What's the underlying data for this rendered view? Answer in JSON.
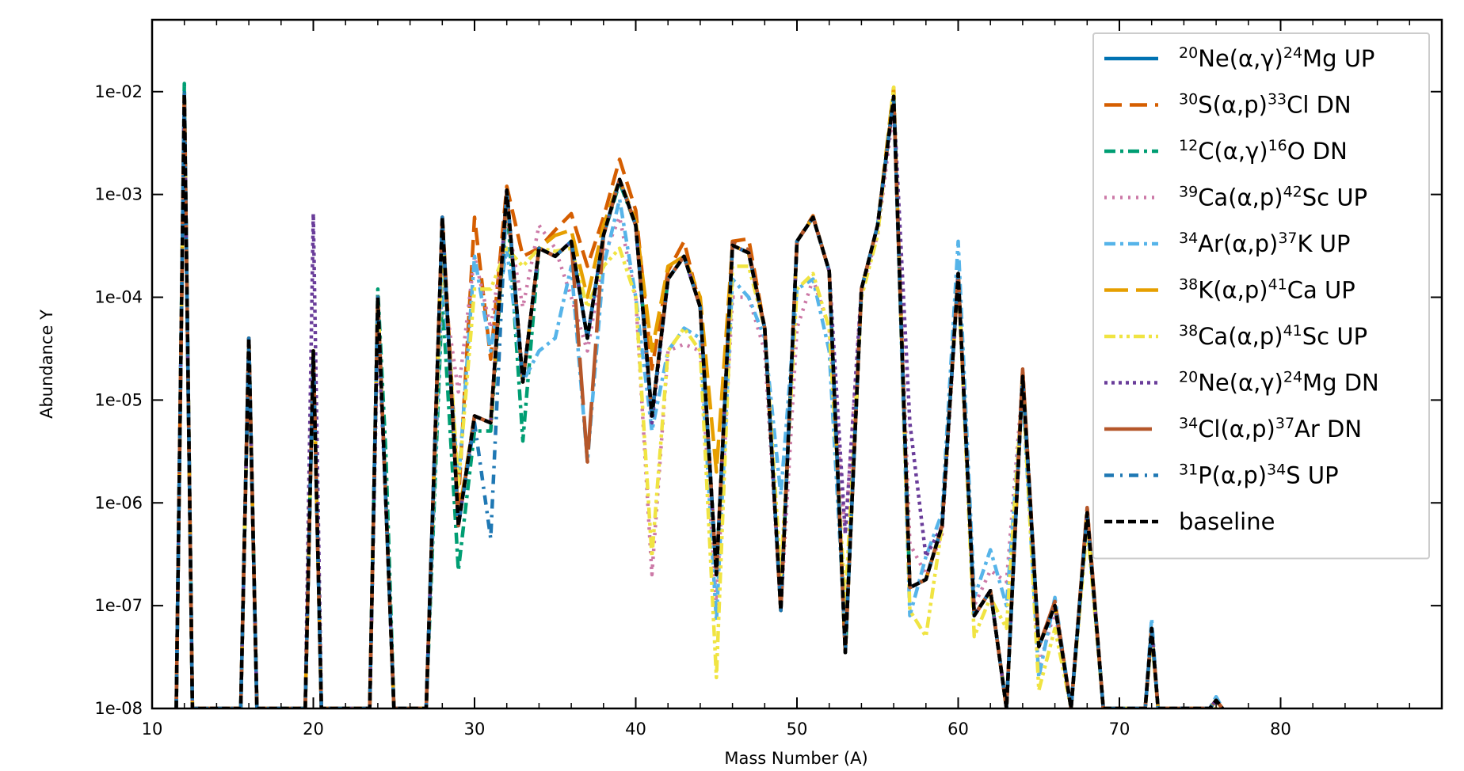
{
  "chart_data": {
    "type": "line",
    "xlabel": "Mass Number (A)",
    "ylabel": "Abundance Y",
    "xlim": [
      10,
      90
    ],
    "ylim": [
      1e-08,
      0.05
    ],
    "yscale": "log",
    "x_ticks": [
      {
        "value": 10,
        "label": "10"
      },
      {
        "value": 20,
        "label": "20"
      },
      {
        "value": 30,
        "label": "30"
      },
      {
        "value": 40,
        "label": "40"
      },
      {
        "value": 50,
        "label": "50"
      },
      {
        "value": 60,
        "label": "60"
      },
      {
        "value": 70,
        "label": "70"
      },
      {
        "value": 80,
        "label": "80"
      }
    ],
    "y_ticks": [
      {
        "value": 1e-08,
        "label": "1e-08"
      },
      {
        "value": 1e-07,
        "label": "1e-07"
      },
      {
        "value": 1e-06,
        "label": "1e-06"
      },
      {
        "value": 1e-05,
        "label": "1e-05"
      },
      {
        "value": 0.0001,
        "label": "1e-04"
      },
      {
        "value": 0.001,
        "label": "1e-03"
      },
      {
        "value": 0.01,
        "label": "1e-02"
      }
    ],
    "grid": false,
    "legend_position": "top-right",
    "x": [
      11.5,
      12,
      12.5,
      15.5,
      16,
      16.5,
      19.5,
      20,
      20.5,
      23.5,
      24,
      24.5,
      25,
      26,
      27,
      28,
      29,
      30,
      31,
      32,
      33,
      34,
      35,
      36,
      37,
      38,
      39,
      40,
      41,
      42,
      43,
      44,
      45,
      46,
      47,
      48,
      49,
      50,
      51,
      52,
      53,
      54,
      55,
      56,
      57,
      58,
      59,
      60,
      61,
      62,
      63,
      64,
      65,
      66,
      67,
      68,
      69,
      70,
      71.6,
      72,
      72.4,
      75.6,
      76,
      76.4
    ],
    "series": [
      {
        "name": "20Ne(α,γ)24Mg UP",
        "legend": {
          "iso1": "20",
          "el1": "Ne(α,γ)",
          "iso2": "24",
          "el2": "Mg UP"
        },
        "color": "#0072b2",
        "dash": "solid",
        "width": 4.5,
        "values": [
          1e-08,
          0.01,
          1e-08,
          1e-08,
          4e-05,
          1e-08,
          1e-08,
          3e-05,
          1e-08,
          1e-08,
          0.0001,
          1e-06,
          1e-08,
          1e-08,
          1e-08,
          0.0006,
          6e-07,
          7e-06,
          6e-06,
          0.0011,
          1.5e-05,
          0.0003,
          0.00025,
          0.00035,
          4e-05,
          0.0004,
          0.0014,
          0.0005,
          7e-06,
          0.00015,
          0.00025,
          8e-05,
          2e-07,
          0.00032,
          0.00027,
          5e-05,
          9e-08,
          0.00035,
          0.0006,
          0.00018,
          3.5e-08,
          0.00012,
          0.0005,
          0.009,
          1.5e-07,
          1.8e-07,
          6e-07,
          0.00017,
          8e-08,
          1.4e-07,
          1e-08,
          1.7e-05,
          4e-08,
          1e-07,
          1e-08,
          8e-07,
          1e-08,
          1e-08,
          1e-08,
          6e-08,
          1e-08,
          1e-08,
          1.2e-08,
          1e-08
        ]
      },
      {
        "name": "30S(α,p)33Cl DN",
        "legend": {
          "iso1": "30",
          "el1": "S(α,p)",
          "iso2": "33",
          "el2": "Cl DN"
        },
        "color": "#d55e00",
        "dash": "22 10",
        "width": 4.5,
        "values": [
          1e-08,
          0.0095,
          1e-08,
          1e-08,
          4e-05,
          1e-08,
          1e-08,
          3e-05,
          1e-08,
          1e-08,
          0.0001,
          1e-06,
          1e-08,
          1e-08,
          1e-08,
          0.00062,
          1e-06,
          0.0006,
          2.5e-05,
          0.0012,
          0.00025,
          0.0003,
          0.00045,
          0.00065,
          0.0002,
          0.0006,
          0.0022,
          0.0007,
          2e-05,
          0.00018,
          0.00035,
          8e-05,
          2e-07,
          0.00035,
          0.00037,
          5e-05,
          9e-08,
          0.00035,
          0.00062,
          0.00018,
          3.5e-08,
          0.00012,
          0.0005,
          0.009,
          1.5e-07,
          1.8e-07,
          6e-07,
          0.00017,
          8e-08,
          1.4e-07,
          1e-08,
          2e-05,
          4e-08,
          1.1e-07,
          1e-08,
          9e-07,
          1e-08,
          1e-08,
          1e-08,
          6e-08,
          1e-08,
          1e-08,
          1.2e-08,
          1e-08
        ]
      },
      {
        "name": "12C(α,γ)16O DN",
        "legend": {
          "iso1": "12",
          "el1": "C(α,γ)",
          "iso2": "16",
          "el2": "O DN"
        },
        "color": "#009e73",
        "dash": "14 6 4 6",
        "width": 4.5,
        "values": [
          1e-08,
          0.012,
          1e-08,
          1e-08,
          4e-05,
          1e-08,
          1e-08,
          3e-05,
          1e-08,
          1e-08,
          0.00012,
          3e-06,
          1e-08,
          1e-08,
          1e-08,
          0.0001,
          2.2e-07,
          5e-06,
          5e-06,
          0.0009,
          4e-06,
          0.0003,
          0.00025,
          0.00035,
          4e-05,
          0.0004,
          0.0013,
          0.0005,
          7e-06,
          0.00015,
          0.00025,
          8e-05,
          2e-07,
          0.00032,
          0.00027,
          5e-05,
          9e-08,
          0.00035,
          0.0006,
          0.00018,
          3.5e-08,
          0.00012,
          0.0005,
          0.009,
          1.5e-07,
          1.8e-07,
          6e-07,
          0.00017,
          8e-08,
          1.4e-07,
          1e-08,
          1.7e-05,
          4e-08,
          1e-07,
          1e-08,
          8e-07,
          1e-08,
          1e-08,
          1e-08,
          6e-08,
          1e-08,
          1e-08,
          1.2e-08,
          1e-08
        ]
      },
      {
        "name": "39Ca(α,p)42Sc UP",
        "legend": {
          "iso1": "39",
          "el1": "Ca(α,p)",
          "iso2": "42",
          "el2": "Sc UP"
        },
        "color": "#cc79a7",
        "dash": "3 7",
        "width": 4.5,
        "values": [
          1e-08,
          0.0095,
          1e-08,
          1e-08,
          4e-05,
          1e-08,
          1e-08,
          3e-05,
          1e-08,
          1e-08,
          0.0001,
          1e-06,
          1e-08,
          1e-08,
          1e-08,
          0.00015,
          1.2e-05,
          0.00025,
          5e-05,
          0.0006,
          8e-05,
          0.0005,
          0.0003,
          0.0001,
          3e-05,
          0.00025,
          0.0006,
          0.0001,
          2e-07,
          3e-05,
          3.5e-05,
          3e-05,
          1e-07,
          0.0001,
          0.0001,
          3e-05,
          9e-08,
          5e-05,
          0.00015,
          5e-05,
          5e-07,
          0.00012,
          0.0004,
          0.007,
          4e-07,
          2e-07,
          5e-07,
          0.00015,
          1e-07,
          2.2e-07,
          1.7e-07,
          1.5e-05,
          2.5e-08,
          9e-08,
          1e-08,
          8e-07,
          1e-08,
          1e-08,
          1e-08,
          6e-08,
          1e-08,
          1e-08,
          1.2e-08,
          1e-08
        ]
      },
      {
        "name": "34Ar(α,p)37K UP",
        "legend": {
          "iso1": "34",
          "el1": "Ar(α,p)",
          "iso2": "37",
          "el2": "K UP"
        },
        "color": "#56b4e9",
        "dash": "14 6 4 6",
        "width": 4.5,
        "values": [
          1e-08,
          0.0095,
          1e-08,
          1e-08,
          4e-05,
          1e-08,
          1e-08,
          3e-05,
          1e-08,
          1e-08,
          0.0001,
          1e-06,
          1e-08,
          1e-08,
          1e-08,
          0.0002,
          1.5e-06,
          0.00025,
          3e-05,
          0.0003,
          1.5e-05,
          3e-05,
          4e-05,
          0.0002,
          2.5e-06,
          0.0002,
          0.0009,
          0.0001,
          5e-06,
          3e-05,
          5e-05,
          4e-05,
          7e-08,
          0.00015,
          0.0001,
          4e-05,
          1.2e-06,
          0.00012,
          0.00015,
          3e-05,
          5e-08,
          0.00012,
          0.0005,
          0.009,
          8e-08,
          3e-07,
          8e-07,
          0.00035,
          1.2e-07,
          3.5e-07,
          1e-07,
          1.2e-05,
          2e-08,
          1.2e-07,
          1e-08,
          7e-07,
          1e-08,
          1e-08,
          1e-08,
          7.5e-08,
          1e-08,
          1e-08,
          1.3e-08,
          1e-08
        ]
      },
      {
        "name": "38K(α,p)41Ca UP",
        "legend": {
          "iso1": "38",
          "el1": "K(α,p)",
          "iso2": "41",
          "el2": "Ca UP"
        },
        "color": "#e69f00",
        "dash": "30 10",
        "width": 4.5,
        "values": [
          1e-08,
          0.0095,
          1e-08,
          1e-08,
          4e-05,
          1e-08,
          1e-08,
          3e-05,
          1e-08,
          1e-08,
          0.0001,
          1e-06,
          1e-08,
          1e-08,
          1e-08,
          0.0006,
          7e-07,
          7e-06,
          6e-06,
          0.001,
          1.5e-05,
          0.0003,
          0.0004,
          0.00045,
          0.0001,
          0.0005,
          0.0014,
          0.00055,
          3e-05,
          0.0002,
          0.00025,
          0.0001,
          2e-06,
          0.00032,
          0.00027,
          5e-05,
          9e-08,
          0.00035,
          0.0006,
          0.00018,
          3.5e-08,
          0.00012,
          0.0005,
          0.011,
          1.5e-07,
          1.8e-07,
          6e-07,
          0.00017,
          8e-08,
          1.4e-07,
          1e-08,
          1.7e-05,
          4e-08,
          1e-07,
          1e-08,
          8e-07,
          1e-08,
          1e-08,
          1e-08,
          6e-08,
          1e-08,
          1e-08,
          1.2e-08,
          1e-08
        ]
      },
      {
        "name": "38Ca(α,p)41Sc UP",
        "legend": {
          "iso1": "38",
          "el1": "Ca(α,p)",
          "iso2": "41",
          "el2": "Sc UP"
        },
        "color": "#f0e442",
        "dash": "14 5 4 5 4 5",
        "width": 4.5,
        "values": [
          1e-08,
          0.0095,
          1e-08,
          1e-08,
          4e-05,
          1e-08,
          1e-08,
          3e-05,
          1e-08,
          1e-08,
          0.0001,
          1e-06,
          1e-08,
          1e-08,
          1e-08,
          0.00035,
          1.5e-06,
          0.00012,
          0.00012,
          0.0003,
          0.0002,
          0.0003,
          0.00028,
          0.0003,
          8e-05,
          0.0002,
          0.0003,
          0.0001,
          3e-07,
          3e-05,
          5e-05,
          3e-05,
          2e-08,
          0.0002,
          0.0002,
          5e-05,
          2e-07,
          0.00012,
          0.00017,
          5e-05,
          1e-07,
          0.0001,
          0.0004,
          0.011,
          9e-08,
          5e-08,
          6e-07,
          0.00016,
          5e-08,
          1.2e-07,
          6e-08,
          1.5e-05,
          1.5e-08,
          6e-08,
          1e-08,
          6e-07,
          1e-08,
          1e-08,
          1e-08,
          5e-08,
          1e-08,
          1e-08,
          1e-08,
          1e-08
        ]
      },
      {
        "name": "20Ne(α,γ)24Mg DN",
        "legend": {
          "iso1": "20",
          "el1": "Ne(α,γ)",
          "iso2": "24",
          "el2": "Mg DN"
        },
        "color": "#6a3d9a",
        "dash": "4 5",
        "width": 4.5,
        "values": [
          1e-08,
          0.0095,
          1e-08,
          1e-08,
          4e-05,
          1e-08,
          1e-08,
          0.00065,
          1e-08,
          1e-08,
          6e-05,
          1e-06,
          1e-08,
          1e-08,
          1e-08,
          0.0006,
          6e-07,
          7e-06,
          6e-06,
          0.0011,
          1.5e-05,
          0.0003,
          0.00025,
          0.00035,
          4e-05,
          0.0004,
          0.0014,
          0.0005,
          6e-06,
          0.00015,
          0.00025,
          8e-05,
          2e-07,
          0.00032,
          0.00027,
          5e-05,
          9e-08,
          0.00035,
          0.0006,
          0.00018,
          5e-07,
          0.00012,
          0.0005,
          0.008,
          6e-06,
          3e-07,
          6e-07,
          0.00017,
          8e-08,
          1.4e-07,
          1e-08,
          1.7e-05,
          4e-08,
          1e-07,
          1e-08,
          8e-07,
          1e-08,
          1e-08,
          1e-08,
          6e-08,
          1e-08,
          1e-08,
          1.2e-08,
          1e-08
        ]
      },
      {
        "name": "34Cl(α,p)37Ar DN",
        "legend": {
          "iso1": "34",
          "el1": "Cl(α,p)",
          "iso2": "37",
          "el2": "Ar DN"
        },
        "color": "#b5572a",
        "dash": "60 14",
        "width": 4.5,
        "values": [
          1e-08,
          0.0095,
          1e-08,
          1e-08,
          4e-05,
          1e-08,
          1e-08,
          3e-05,
          1e-08,
          1e-08,
          0.0001,
          1e-06,
          1e-08,
          1e-08,
          1e-08,
          0.0006,
          6e-07,
          7e-06,
          6e-06,
          0.0011,
          1.5e-05,
          0.0003,
          0.00025,
          0.00035,
          2.5e-06,
          0.0004,
          0.0014,
          0.0005,
          7e-06,
          0.00015,
          0.00025,
          8e-05,
          2e-07,
          0.00034,
          0.00029,
          5e-05,
          9e-08,
          0.00035,
          0.0006,
          0.00018,
          3.5e-08,
          0.00012,
          0.0005,
          0.009,
          1.5e-07,
          1.8e-07,
          6e-07,
          0.00017,
          8e-08,
          1.4e-07,
          1e-08,
          2e-05,
          4e-08,
          1.1e-07,
          1e-08,
          9e-07,
          1e-08,
          1e-08,
          1e-08,
          6e-08,
          1e-08,
          1e-08,
          1.2e-08,
          1e-08
        ]
      },
      {
        "name": "31P(α,p)34S UP",
        "legend": {
          "iso1": "31",
          "el1": "P(α,p)",
          "iso2": "34",
          "el2": "S UP"
        },
        "color": "#1f78b4",
        "dash": "12 8 3 8",
        "width": 4.5,
        "values": [
          1e-08,
          0.0095,
          1e-08,
          1e-08,
          4e-05,
          1e-08,
          1e-08,
          3e-05,
          1e-08,
          1e-08,
          0.0001,
          1e-06,
          1e-08,
          1e-08,
          1e-08,
          0.0006,
          6e-07,
          6e-06,
          4.5e-07,
          0.0011,
          1.5e-05,
          0.0003,
          0.00025,
          0.00035,
          4e-05,
          0.0004,
          0.0014,
          0.0005,
          7e-06,
          0.00015,
          0.00025,
          8e-05,
          2e-07,
          0.00032,
          0.00027,
          5e-05,
          9e-08,
          0.00035,
          0.0006,
          0.00018,
          3.5e-08,
          0.00012,
          0.0005,
          0.009,
          1.5e-07,
          1.8e-07,
          6e-07,
          0.00017,
          8e-08,
          1.4e-07,
          1e-08,
          1.7e-05,
          4e-08,
          1e-07,
          1e-08,
          8e-07,
          1e-08,
          1e-08,
          1e-08,
          6e-08,
          1e-08,
          1e-08,
          1.2e-08,
          1e-08
        ]
      },
      {
        "name": "baseline",
        "legend": {
          "plain": "baseline"
        },
        "color": "#000000",
        "dash": "10 5",
        "width": 4.5,
        "values": [
          1e-08,
          0.0095,
          1e-08,
          1e-08,
          4e-05,
          1e-08,
          1e-08,
          3e-05,
          1e-08,
          1e-08,
          0.0001,
          1e-06,
          1e-08,
          1e-08,
          1e-08,
          0.0006,
          6e-07,
          7e-06,
          6e-06,
          0.0011,
          1.5e-05,
          0.0003,
          0.00025,
          0.00035,
          4e-05,
          0.0004,
          0.0014,
          0.0005,
          7e-06,
          0.00015,
          0.00025,
          8e-05,
          2e-07,
          0.00032,
          0.00027,
          5e-05,
          9e-08,
          0.00035,
          0.0006,
          0.00018,
          3.5e-08,
          0.00012,
          0.0005,
          0.009,
          1.5e-07,
          1.8e-07,
          6e-07,
          0.00017,
          8e-08,
          1.4e-07,
          1e-08,
          1.7e-05,
          4e-08,
          1e-07,
          1e-08,
          8e-07,
          1e-08,
          1e-08,
          1e-08,
          6e-08,
          1e-08,
          1e-08,
          1.2e-08,
          1e-08
        ]
      }
    ]
  }
}
